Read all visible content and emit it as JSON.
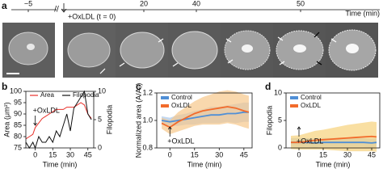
{
  "figure": {
    "panel_labels": [
      "a",
      "b",
      "c",
      "d"
    ],
    "timeline": {
      "label": "+OxLDL (t = 0)",
      "ticks": [
        "−5",
        "20",
        "40",
        "50"
      ],
      "axis_label": "Time (min)"
    }
  },
  "chart_data": [
    {
      "type": "line",
      "xlabel": "Time (min)",
      "ylabel": "Area (μm²)",
      "y2label": "Filopodia",
      "annotation": "+OxLDL",
      "annotation_x": 0,
      "legend": "top",
      "x": [
        -8,
        -5,
        -2,
        0,
        3,
        6,
        9,
        12,
        15,
        18,
        21,
        24,
        27,
        30,
        33,
        36,
        39,
        42,
        45,
        48
      ],
      "xlim": [
        -8,
        50
      ],
      "xticks": [
        0,
        15,
        30,
        45
      ],
      "ylim": [
        75,
        100
      ],
      "yticks": [
        75,
        80,
        85,
        90,
        95,
        100
      ],
      "y2lim": [
        0,
        10
      ],
      "y2ticks": [
        0,
        5,
        10
      ],
      "series": [
        {
          "name": "Area",
          "color": "#e8302a",
          "values": [
            79,
            80,
            81,
            84,
            86,
            88,
            89,
            90,
            91,
            92,
            92,
            92,
            93,
            93,
            93,
            94,
            95,
            94,
            90,
            88
          ]
        },
        {
          "name": "Filopodia",
          "color": "#111111",
          "axis": "y2",
          "values": [
            1,
            0,
            1,
            0,
            2,
            1,
            1,
            2,
            1,
            3,
            2,
            4,
            6,
            3,
            7,
            8,
            9,
            10,
            6,
            5
          ]
        }
      ]
    },
    {
      "type": "line",
      "xlabel": "Time (min)",
      "ylabel": "Normalized area (A/A₀)",
      "annotation": "+OxLDL",
      "annotation_x": 0,
      "legend": "top-left",
      "x": [
        -5,
        0,
        5,
        10,
        15,
        20,
        25,
        30,
        35,
        40,
        45,
        48
      ],
      "xlim": [
        -8,
        50
      ],
      "xticks": [
        0,
        15,
        30,
        45
      ],
      "ylim": [
        0.8,
        1.2
      ],
      "yticks": [
        0.8,
        {
          "value": 1,
          "label": "1.0"
        },
        1.2
      ],
      "series": [
        {
          "name": "Control",
          "color": "#4f8fd6",
          "band_color": "#a9c8ea",
          "values": [
            1.0,
            0.99,
            1.0,
            1.01,
            1.02,
            1.03,
            1.04,
            1.04,
            1.05,
            1.05,
            1.06,
            1.06
          ],
          "error": [
            0.03,
            0.03,
            0.04,
            0.04,
            0.05,
            0.05,
            0.06,
            0.06,
            0.06,
            0.07,
            0.07,
            0.07
          ]
        },
        {
          "name": "OxLDL",
          "color": "#f26b2b",
          "band_color": "#f6c88a",
          "values": [
            0.98,
            0.95,
            0.99,
            1.02,
            1.05,
            1.07,
            1.08,
            1.09,
            1.1,
            1.09,
            1.07,
            1.06
          ],
          "error": [
            0.04,
            0.05,
            0.07,
            0.08,
            0.09,
            0.1,
            0.11,
            0.12,
            0.12,
            0.12,
            0.12,
            0.12
          ]
        }
      ]
    },
    {
      "type": "line",
      "xlabel": "Time (min)",
      "ylabel": "Filopodia",
      "annotation": "+OxLDL",
      "annotation_x": 0,
      "legend": "top-left",
      "x": [
        -5,
        0,
        5,
        10,
        15,
        20,
        25,
        30,
        35,
        40,
        45,
        48
      ],
      "xlim": [
        -8,
        50
      ],
      "xticks": [
        0,
        15,
        30,
        45
      ],
      "ylim": [
        0,
        10
      ],
      "yticks": [
        0,
        5,
        10
      ],
      "series": [
        {
          "name": "Control",
          "color": "#4f8fd6",
          "band_color": "#a9c8ea",
          "values": [
            1,
            1,
            1,
            0.9,
            1,
            1,
            1,
            1,
            1,
            1,
            0.9,
            1
          ],
          "error": [
            0.8,
            0.8,
            0.8,
            0.8,
            0.8,
            0.8,
            0.8,
            0.8,
            0.8,
            0.8,
            0.8,
            0.8
          ]
        },
        {
          "name": "OxLDL",
          "color": "#f26b2b",
          "band_color": "#f6d27a",
          "values": [
            1,
            1,
            1.2,
            1.4,
            1.5,
            1.6,
            1.7,
            1.8,
            1.9,
            2,
            2.1,
            2
          ],
          "error": [
            1.2,
            1.3,
            1.5,
            1.7,
            1.8,
            2,
            2.2,
            2.4,
            2.5,
            2.6,
            2.7,
            2.7
          ]
        }
      ]
    }
  ]
}
